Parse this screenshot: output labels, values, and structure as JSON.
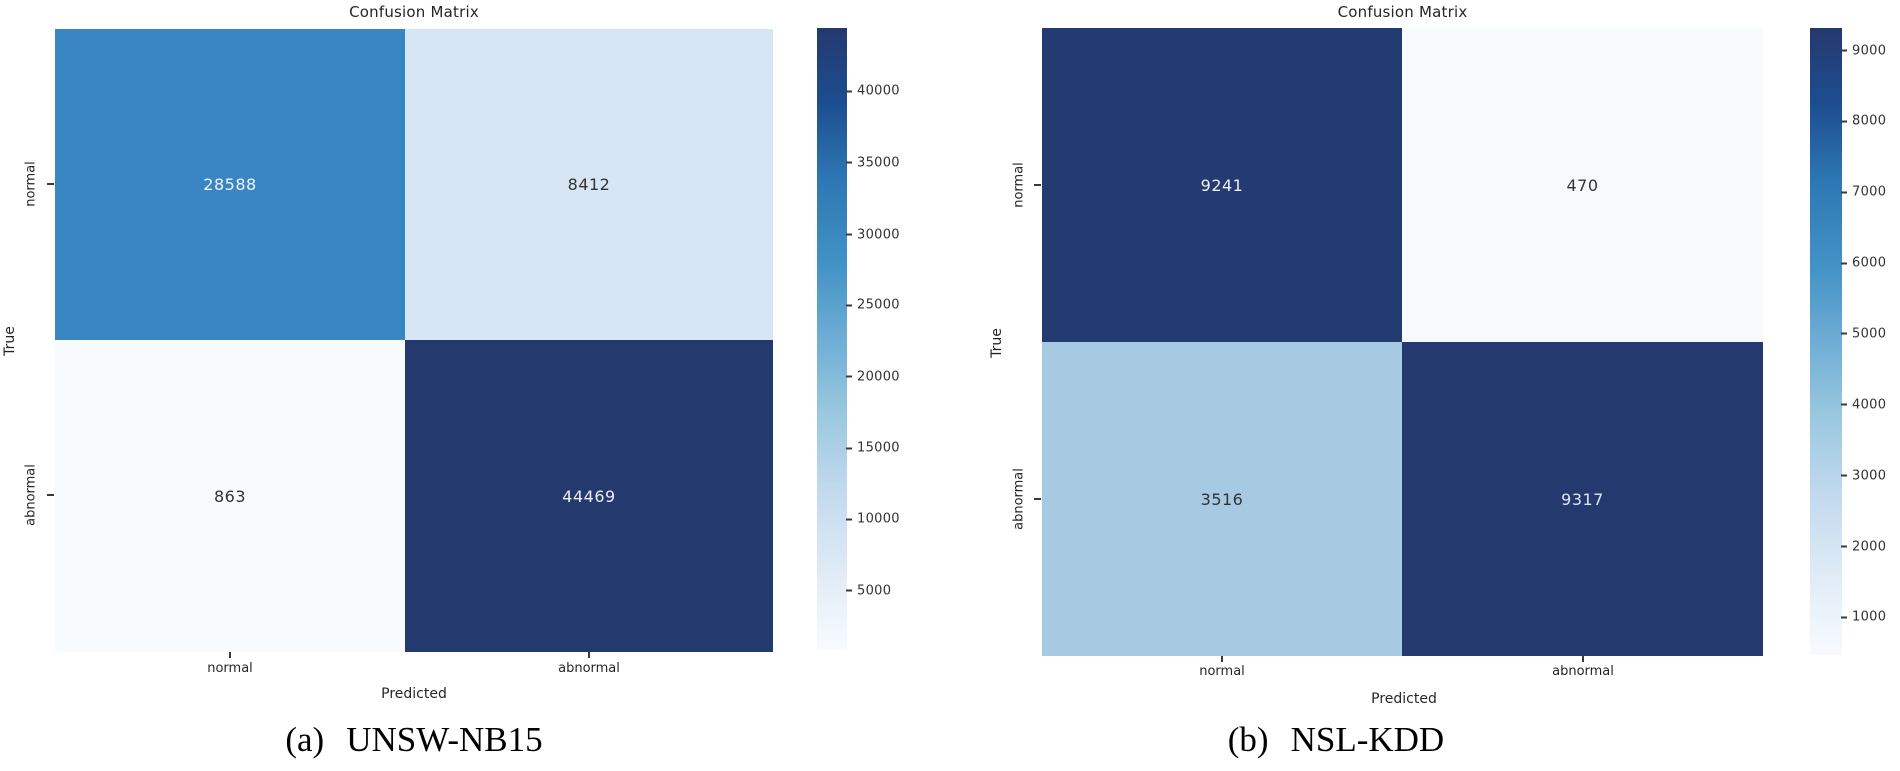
{
  "figure": {
    "panels": [
      {
        "title": "Confusion Matrix",
        "xlabel": "Predicted",
        "ylabel": "True",
        "x_ticks": [
          "normal",
          "abnormal"
        ],
        "y_ticks": [
          "normal",
          "abnormal"
        ],
        "cells": [
          {
            "value": "28588",
            "bg": "#3a86c3",
            "fg": "#eef4fb"
          },
          {
            "value": "8412",
            "bg": "#d7e6f4",
            "fg": "#333333"
          },
          {
            "value": "863",
            "bg": "#f8fbfe",
            "fg": "#333333"
          },
          {
            "value": "44469",
            "bg": "#24396e",
            "fg": "#e9eef7"
          }
        ],
        "colorbar": {
          "ticks": [
            {
              "label": "40000",
              "pos": 10.2
            },
            {
              "label": "35000",
              "pos": 21.7
            },
            {
              "label": "30000",
              "pos": 33.2
            },
            {
              "label": "25000",
              "pos": 44.6
            },
            {
              "label": "20000",
              "pos": 56.1
            },
            {
              "label": "15000",
              "pos": 67.6
            },
            {
              "label": "10000",
              "pos": 79.0
            },
            {
              "label": "5000",
              "pos": 90.5
            }
          ]
        },
        "caption": {
          "prefix": "(a)",
          "dataset": "UNSW-NB15"
        }
      },
      {
        "title": "Confusion Matrix",
        "xlabel": "Predicted",
        "ylabel": "True",
        "x_ticks": [
          "normal",
          "abnormal"
        ],
        "y_ticks": [
          "normal",
          "abnormal"
        ],
        "cells": [
          {
            "value": "9241",
            "bg": "#243b72",
            "fg": "#e9eef7"
          },
          {
            "value": "470",
            "bg": "#f6fafd",
            "fg": "#333333"
          },
          {
            "value": "3516",
            "bg": "#a5cae2",
            "fg": "#333333"
          },
          {
            "value": "9317",
            "bg": "#24396e",
            "fg": "#dde6f2"
          }
        ],
        "colorbar": {
          "ticks": [
            {
              "label": "9000",
              "pos": 3.6
            },
            {
              "label": "8000",
              "pos": 14.9
            },
            {
              "label": "7000",
              "pos": 26.2
            },
            {
              "label": "6000",
              "pos": 37.5
            },
            {
              "label": "5000",
              "pos": 48.8
            },
            {
              "label": "4000",
              "pos": 60.1
            },
            {
              "label": "3000",
              "pos": 71.4
            },
            {
              "label": "2000",
              "pos": 82.7
            },
            {
              "label": "1000",
              "pos": 94.0
            }
          ]
        },
        "caption": {
          "prefix": "(b)",
          "dataset": "NSL-KDD"
        }
      }
    ]
  },
  "chart_data": [
    {
      "type": "heatmap",
      "title": "Confusion Matrix",
      "dataset": "UNSW-NB15",
      "xlabel": "Predicted",
      "ylabel": "True",
      "x_categories": [
        "normal",
        "abnormal"
      ],
      "y_categories": [
        "normal",
        "abnormal"
      ],
      "values": [
        [
          28588,
          8412
        ],
        [
          863,
          44469
        ]
      ],
      "colormap": "Blues",
      "colorbar_ticks": [
        5000,
        10000,
        15000,
        20000,
        25000,
        30000,
        35000,
        40000
      ],
      "colorbar_range": [
        863,
        44469
      ],
      "legend_position": "right"
    },
    {
      "type": "heatmap",
      "title": "Confusion Matrix",
      "dataset": "NSL-KDD",
      "xlabel": "Predicted",
      "ylabel": "True",
      "x_categories": [
        "normal",
        "abnormal"
      ],
      "y_categories": [
        "normal",
        "abnormal"
      ],
      "values": [
        [
          9241,
          470
        ],
        [
          3516,
          9317
        ]
      ],
      "colormap": "Blues",
      "colorbar_ticks": [
        1000,
        2000,
        3000,
        4000,
        5000,
        6000,
        7000,
        8000,
        9000
      ],
      "colorbar_range": [
        470,
        9317
      ],
      "legend_position": "right"
    }
  ]
}
